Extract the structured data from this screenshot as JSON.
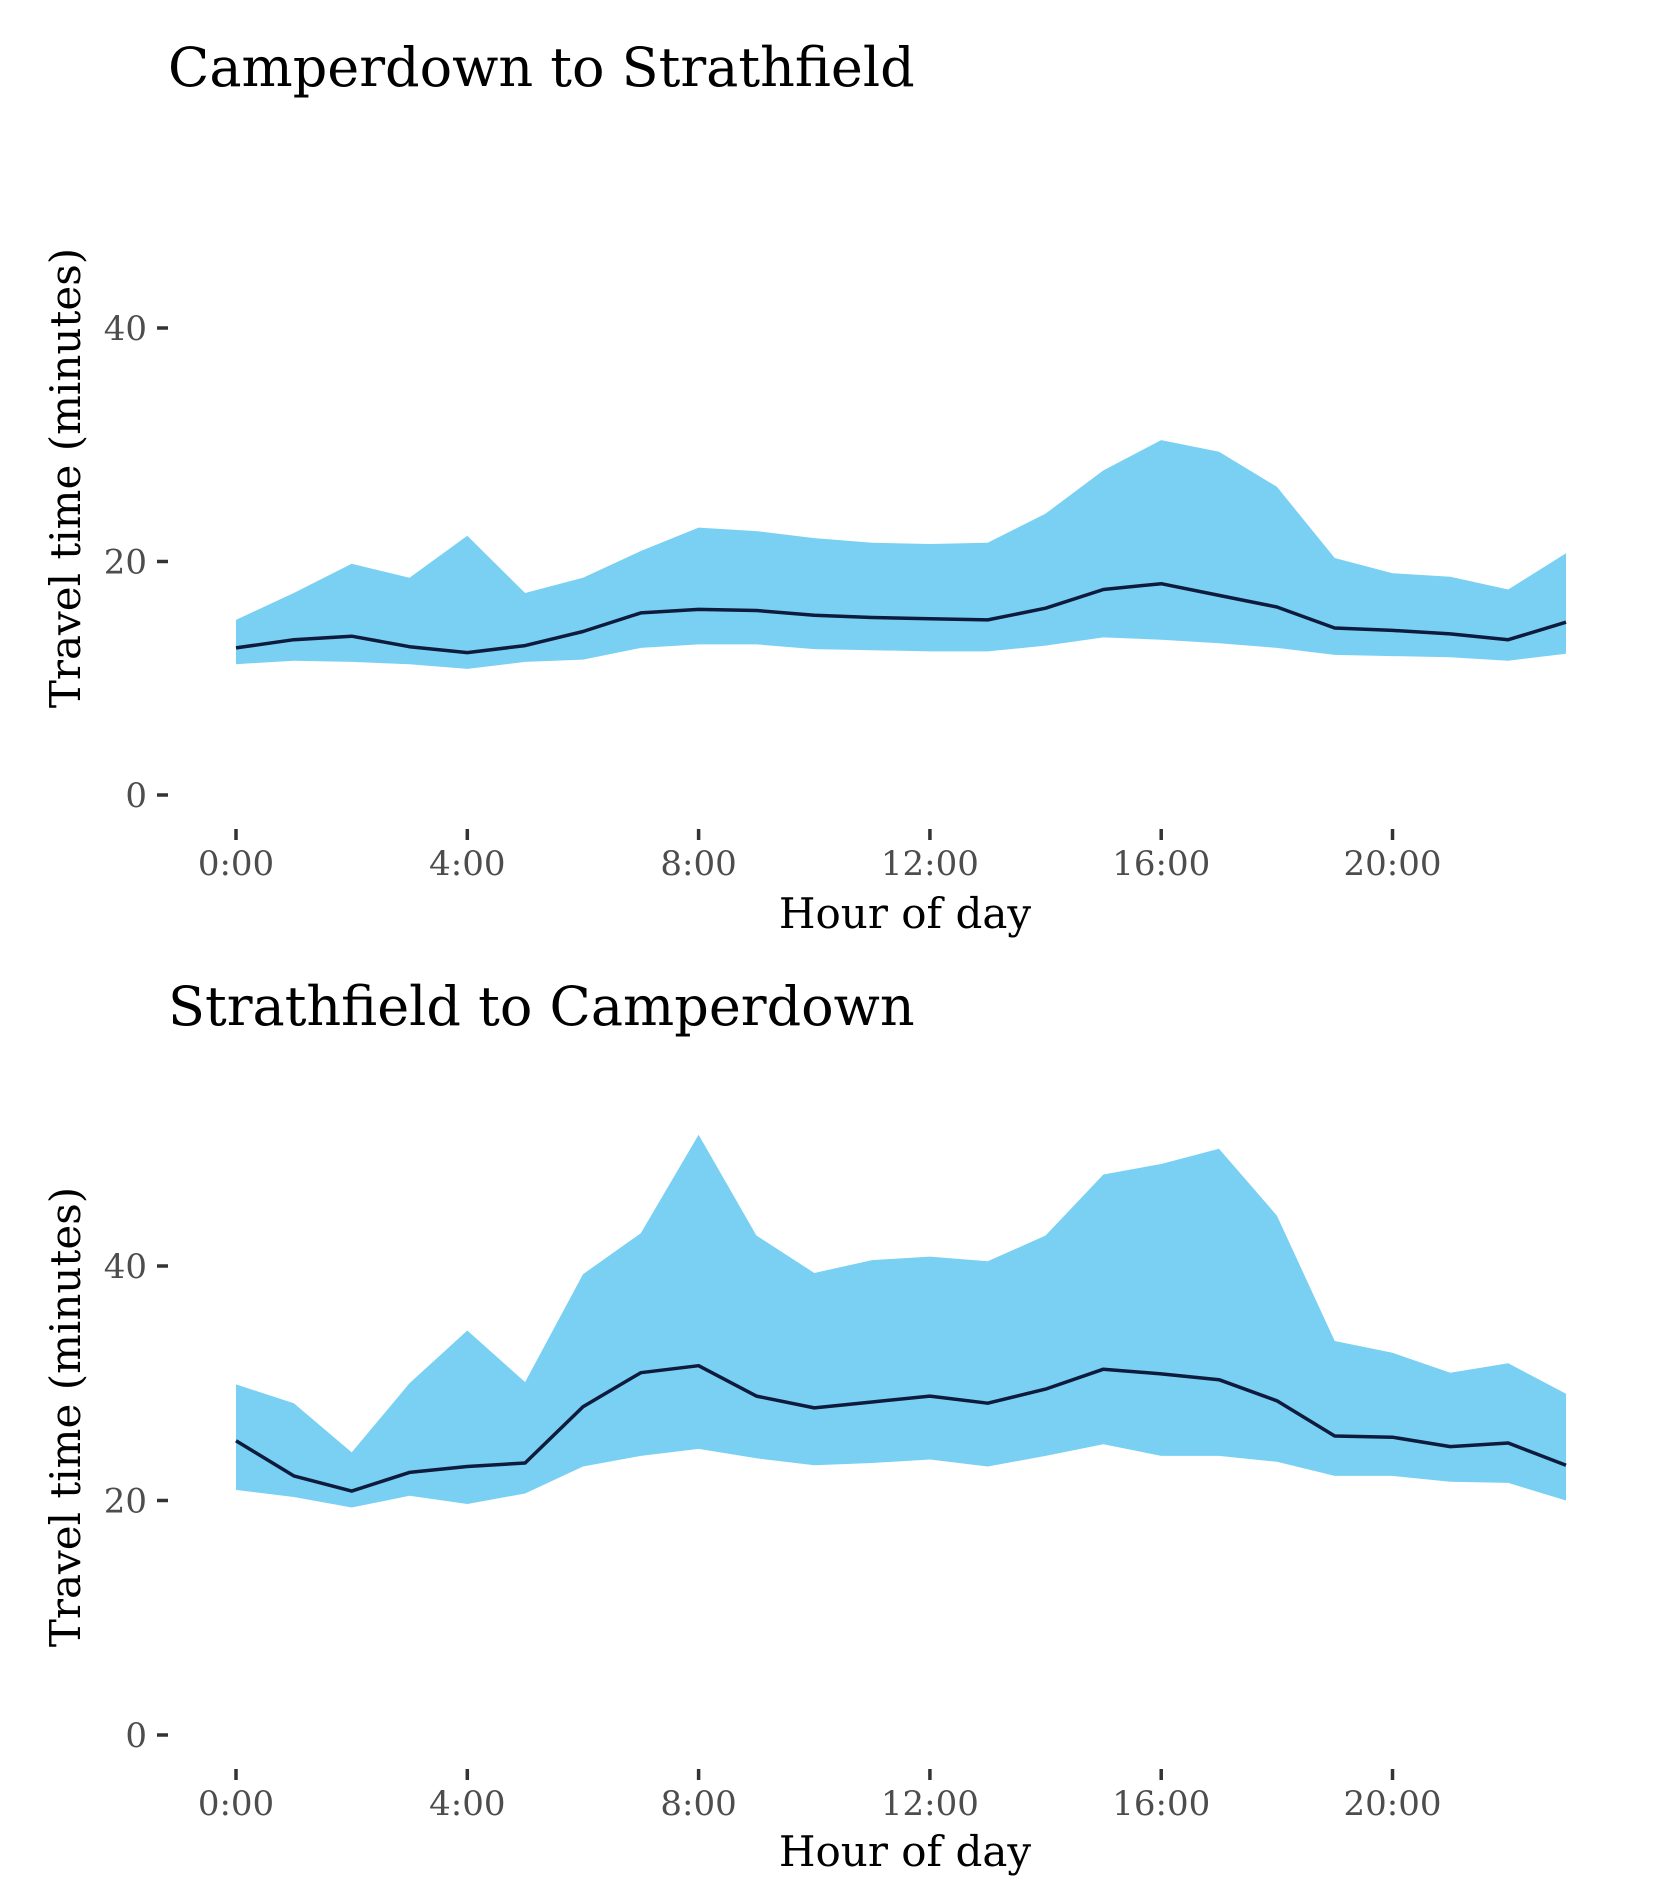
{
  "colors": {
    "ribbon": "#79d0f3",
    "line": "#0e1b3d",
    "tick_text": "#4d4d4d",
    "background": "#ffffff"
  },
  "chart_data": [
    {
      "type": "area",
      "title": "Camperdown to Strathfield",
      "xlabel": "Hour of day",
      "ylabel": "Travel time (minutes)",
      "x_ticks": [
        0,
        4,
        8,
        12,
        16,
        20
      ],
      "x_tick_labels": [
        "0:00",
        "4:00",
        "8:00",
        "12:00",
        "16:00",
        "20:00"
      ],
      "y_ticks": [
        0,
        20,
        40
      ],
      "y_tick_labels": [
        "0",
        "20",
        "40"
      ],
      "xlim": [
        0,
        23
      ],
      "ylim": [
        0,
        52
      ],
      "grid": false,
      "x": [
        0,
        1,
        2,
        3,
        4,
        5,
        6,
        7,
        8,
        9,
        10,
        11,
        12,
        13,
        14,
        15,
        16,
        17,
        18,
        19,
        20,
        21,
        22,
        23
      ],
      "series": [
        {
          "role": "ribbon",
          "lower": [
            11.2,
            11.5,
            11.4,
            11.2,
            10.8,
            11.4,
            11.6,
            12.6,
            12.9,
            12.9,
            12.5,
            12.4,
            12.3,
            12.3,
            12.8,
            13.5,
            13.3,
            13.0,
            12.6,
            12.0,
            11.9,
            11.8,
            11.5,
            12.1
          ],
          "upper": [
            15.0,
            17.3,
            19.8,
            18.6,
            22.2,
            17.3,
            18.6,
            20.9,
            22.9,
            22.6,
            22.0,
            21.6,
            21.5,
            21.6,
            24.1,
            27.8,
            30.4,
            29.4,
            26.4,
            20.3,
            19.0,
            18.7,
            17.6,
            20.7
          ]
        },
        {
          "role": "line",
          "values": [
            12.6,
            13.3,
            13.6,
            12.7,
            12.2,
            12.8,
            14.0,
            15.6,
            15.9,
            15.8,
            15.4,
            15.2,
            15.1,
            15.0,
            16.0,
            17.6,
            18.1,
            17.1,
            16.1,
            14.3,
            14.1,
            13.8,
            13.3,
            14.8
          ]
        }
      ]
    },
    {
      "type": "area",
      "title": "Strathfield to Camperdown",
      "xlabel": "Hour of day",
      "ylabel": "Travel time (minutes)",
      "x_ticks": [
        0,
        4,
        8,
        12,
        16,
        20
      ],
      "x_tick_labels": [
        "0:00",
        "4:00",
        "8:00",
        "12:00",
        "16:00",
        "20:00"
      ],
      "y_ticks": [
        0,
        20,
        40
      ],
      "y_tick_labels": [
        "0",
        "20",
        "40"
      ],
      "xlim": [
        0,
        23
      ],
      "ylim": [
        0,
        52
      ],
      "grid": false,
      "x": [
        0,
        1,
        2,
        3,
        4,
        5,
        6,
        7,
        8,
        9,
        10,
        11,
        12,
        13,
        14,
        15,
        16,
        17,
        18,
        19,
        20,
        21,
        22,
        23
      ],
      "series": [
        {
          "role": "ribbon",
          "lower": [
            20.9,
            20.3,
            19.4,
            20.4,
            19.7,
            20.6,
            22.9,
            23.8,
            24.4,
            23.6,
            23.0,
            23.2,
            23.5,
            22.9,
            23.8,
            24.8,
            23.8,
            23.8,
            23.3,
            22.1,
            22.1,
            21.6,
            21.5,
            20.0
          ],
          "upper": [
            29.9,
            28.3,
            24.1,
            30.0,
            34.5,
            30.1,
            39.3,
            42.8,
            51.2,
            42.6,
            39.4,
            40.5,
            40.8,
            40.4,
            42.6,
            47.8,
            48.7,
            50.0,
            44.3,
            33.6,
            32.6,
            30.9,
            31.7,
            29.1
          ]
        },
        {
          "role": "line",
          "values": [
            25.1,
            22.1,
            20.8,
            22.4,
            22.9,
            23.2,
            28.0,
            30.9,
            31.5,
            28.9,
            27.9,
            28.4,
            28.9,
            28.3,
            29.5,
            31.2,
            30.8,
            30.3,
            28.5,
            25.5,
            25.4,
            24.6,
            24.9,
            23.0
          ]
        }
      ]
    }
  ]
}
